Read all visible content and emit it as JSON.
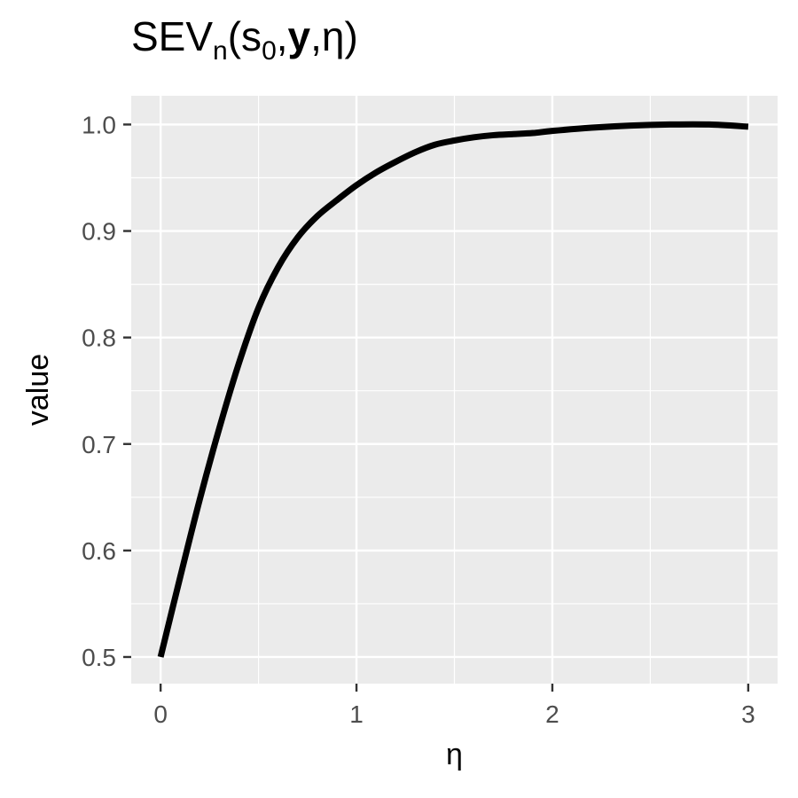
{
  "title": {
    "main": "SEV",
    "sub_n": "n",
    "open": "(s",
    "sub_0": "0",
    "comma1": ",",
    "bold_y": "y",
    "rest": ",η)"
  },
  "chart_data": {
    "type": "line",
    "xlabel": "η",
    "ylabel": "value",
    "xlim": [
      -0.15,
      3.15
    ],
    "ylim": [
      0.475,
      1.027
    ],
    "x_ticks": [
      0,
      1,
      2,
      3
    ],
    "x_tick_labels": [
      "0",
      "1",
      "2",
      "3"
    ],
    "y_ticks": [
      0.5,
      0.6,
      0.7,
      0.8,
      0.9,
      1.0
    ],
    "y_tick_labels": [
      "0.5",
      "0.6",
      "0.7",
      "0.8",
      "0.9",
      "1.0"
    ],
    "grid": true,
    "background": "#ebebeb",
    "line_color": "#000000",
    "series": [
      {
        "x": [
          0,
          0.1,
          0.2,
          0.3,
          0.4,
          0.5,
          0.6,
          0.7,
          0.8,
          0.9,
          1.0,
          1.1,
          1.2,
          1.3,
          1.4,
          1.5,
          1.6,
          1.7,
          1.8,
          1.9,
          2.0,
          2.2,
          2.4,
          2.6,
          2.8,
          3.0
        ],
        "y": [
          0.5,
          0.575,
          0.648,
          0.715,
          0.776,
          0.828,
          0.866,
          0.894,
          0.914,
          0.929,
          0.943,
          0.955,
          0.965,
          0.974,
          0.981,
          0.985,
          0.988,
          0.99,
          0.991,
          0.992,
          0.994,
          0.997,
          0.999,
          1.0,
          1.0,
          0.998
        ]
      }
    ]
  }
}
